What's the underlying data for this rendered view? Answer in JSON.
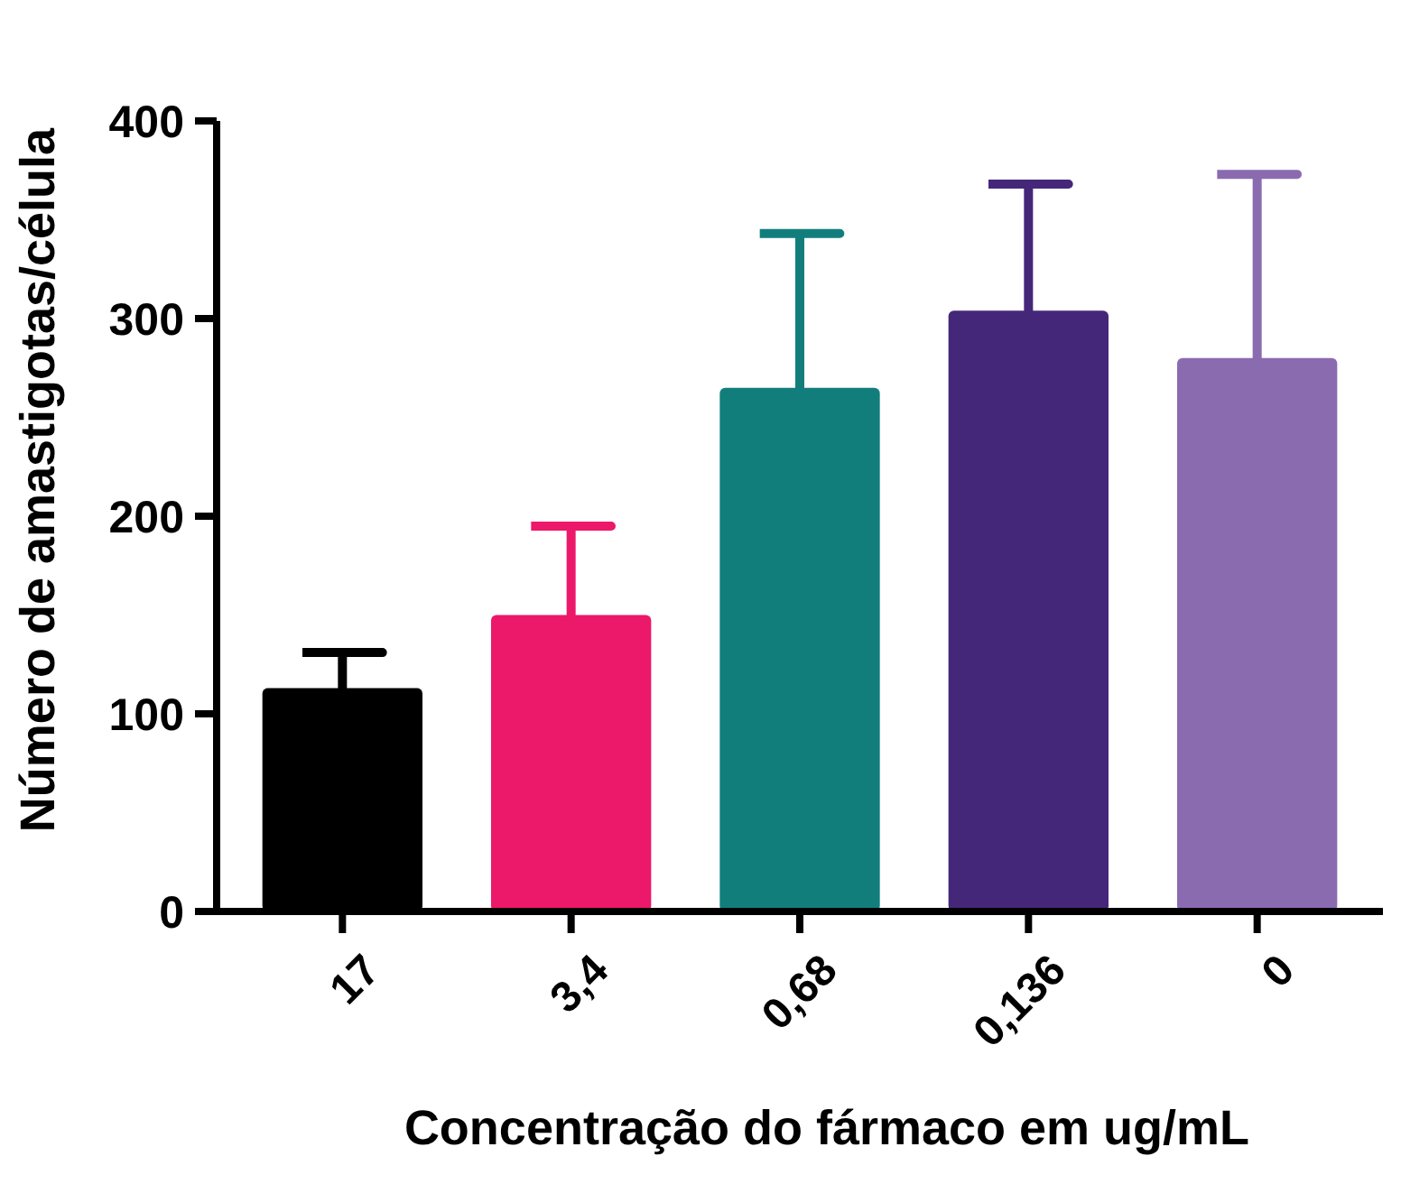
{
  "chart_data": {
    "type": "bar",
    "xlabel": "Concentração do fármaco em ug/mL",
    "ylabel": "Número de amastigotas/célula",
    "categories": [
      "17",
      "3,4",
      "0,68",
      "0,136",
      "0"
    ],
    "values": [
      113,
      150,
      265,
      304,
      280
    ],
    "errors": [
      [
        113,
        131
      ],
      [
        150,
        195
      ],
      [
        265,
        343
      ],
      [
        304,
        368
      ],
      [
        280,
        373
      ]
    ],
    "colors": [
      "#000000",
      "#ec1869",
      "#127e7c",
      "#45277a",
      "#8a6bb0"
    ],
    "ylim": [
      0,
      400
    ],
    "yticks": [
      0,
      100,
      200,
      300,
      400
    ],
    "grid": false
  }
}
